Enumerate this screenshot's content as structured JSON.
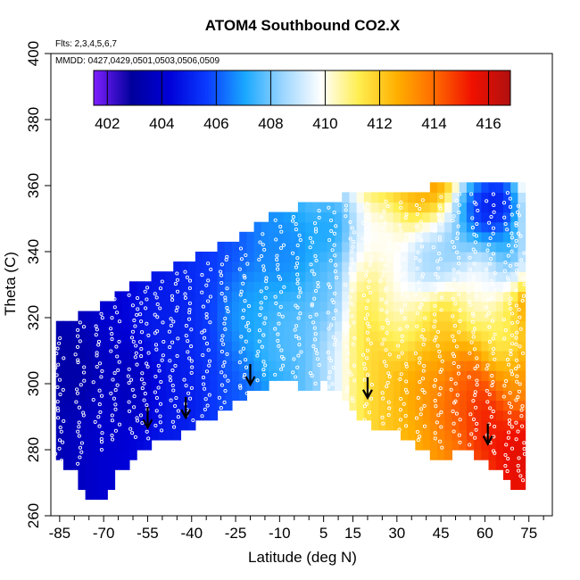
{
  "chart_data": {
    "type": "heatmap",
    "title": "ATOM4 Southbound CO2.X",
    "annotations": {
      "flights": "Flts: 2,3,4,5,6,7",
      "dates": "MMDD: 0427,0429,0501,0503,0506,0509"
    },
    "xlabel": "Latitude (deg N)",
    "ylabel": "Theta (C)",
    "xlim": [
      -88,
      83
    ],
    "ylim": [
      260,
      400
    ],
    "x_ticks": [
      -85,
      -70,
      -55,
      -40,
      -25,
      -10,
      5,
      15,
      30,
      45,
      60,
      75
    ],
    "y_ticks": [
      260,
      280,
      300,
      320,
      340,
      360,
      380,
      400
    ],
    "colorbar": {
      "range": [
        401.5,
        416.8
      ],
      "ticks": [
        402,
        404,
        406,
        408,
        410,
        412,
        414,
        416
      ],
      "colors": [
        "#7f1fff",
        "#00009c",
        "#0000d8",
        "#0a3cff",
        "#1aa8ff",
        "#9dd6ff",
        "#ffffff",
        "#ffee50",
        "#ffb000",
        "#ff6a00",
        "#f01000",
        "#b01010"
      ]
    },
    "columns": [
      {
        "lat": -85,
        "bottom": 278,
        "top": 318,
        "co2": 403.5
      },
      {
        "lat": -80,
        "bottom": 273,
        "top": 320,
        "co2": 403.7
      },
      {
        "lat": -75,
        "bottom": 266,
        "top": 322,
        "co2": 403.9
      },
      {
        "lat": -70,
        "bottom": 265,
        "top": 324,
        "co2": 404.1
      },
      {
        "lat": -65,
        "bottom": 273,
        "top": 328,
        "co2": 404.2
      },
      {
        "lat": -60,
        "bottom": 278,
        "top": 330,
        "co2": 404.4
      },
      {
        "lat": -55,
        "bottom": 281,
        "top": 332,
        "co2": 404.6
      },
      {
        "lat": -50,
        "bottom": 283,
        "top": 334,
        "co2": 404.8
      },
      {
        "lat": -45,
        "bottom": 284,
        "top": 336,
        "co2": 405.0
      },
      {
        "lat": -40,
        "bottom": 287,
        "top": 338,
        "co2": 405.3
      },
      {
        "lat": -35,
        "bottom": 289,
        "top": 340,
        "co2": 405.5
      },
      {
        "lat": -30,
        "bottom": 291,
        "top": 342,
        "co2": 405.8
      },
      {
        "lat": -25,
        "bottom": 294,
        "top": 344,
        "co2": 406.0
      },
      {
        "lat": -20,
        "bottom": 297,
        "top": 346,
        "co2": 406.3
      },
      {
        "lat": -15,
        "bottom": 299,
        "top": 350,
        "co2": 406.7
      },
      {
        "lat": -10,
        "bottom": 301,
        "top": 351,
        "co2": 407.0
      },
      {
        "lat": -5,
        "bottom": 300,
        "top": 353,
        "co2": 407.5
      },
      {
        "lat": 0,
        "bottom": 299,
        "top": 355,
        "co2": 408.0
      },
      {
        "lat": 5,
        "bottom": 300,
        "top": 355,
        "co2": 408.6
      },
      {
        "lat": 10,
        "bottom": 297,
        "top": 356,
        "co2": 409.5
      },
      {
        "lat": 15,
        "bottom": 292,
        "top": 357,
        "co2": 410.8
      },
      {
        "lat": 20,
        "bottom": 288,
        "top": 358,
        "co2": 411.6
      },
      {
        "lat": 25,
        "bottom": 287,
        "top": 358,
        "co2": 412.0
      },
      {
        "lat": 30,
        "bottom": 285,
        "top": 359,
        "co2": 412.3
      },
      {
        "lat": 35,
        "bottom": 283,
        "top": 359,
        "co2": 412.6
      },
      {
        "lat": 40,
        "bottom": 279,
        "top": 359,
        "co2": 412.9
      },
      {
        "lat": 45,
        "bottom": 277,
        "top": 360,
        "co2": 413.2
      },
      {
        "lat": 50,
        "bottom": 280,
        "top": 360,
        "co2": 413.6
      },
      {
        "lat": 55,
        "bottom": 280,
        "top": 361,
        "co2": 414.0
      },
      {
        "lat": 60,
        "bottom": 277,
        "top": 361,
        "co2": 414.4
      },
      {
        "lat": 65,
        "bottom": 273,
        "top": 361,
        "co2": 414.8
      },
      {
        "lat": 70,
        "bottom": 268,
        "top": 362,
        "co2": 415.3
      }
    ],
    "blobs": [
      {
        "lat": -80,
        "theta": 305,
        "co2": 403.0
      },
      {
        "lat": -60,
        "theta": 300,
        "co2": 403.5
      },
      {
        "lat": -50,
        "theta": 318,
        "co2": 405.0
      },
      {
        "lat": -45,
        "theta": 296,
        "co2": 404.8
      },
      {
        "lat": -20,
        "theta": 320,
        "co2": 407.2
      },
      {
        "lat": -10,
        "theta": 315,
        "co2": 407.8
      },
      {
        "lat": -5,
        "theta": 340,
        "co2": 406.5
      },
      {
        "lat": 5,
        "theta": 330,
        "co2": 407.6
      },
      {
        "lat": 10,
        "theta": 345,
        "co2": 406.2
      },
      {
        "lat": 18,
        "theta": 340,
        "co2": 409.8
      },
      {
        "lat": 22,
        "theta": 330,
        "co2": 411.5
      },
      {
        "lat": 25,
        "theta": 342,
        "co2": 409.2
      },
      {
        "lat": 30,
        "theta": 330,
        "co2": 409.0
      },
      {
        "lat": 35,
        "theta": 320,
        "co2": 410.5
      },
      {
        "lat": 40,
        "theta": 336,
        "co2": 407.3
      },
      {
        "lat": 42,
        "theta": 303,
        "co2": 413.0
      },
      {
        "lat": 45,
        "theta": 316,
        "co2": 411.8
      },
      {
        "lat": 50,
        "theta": 340,
        "co2": 406.8
      },
      {
        "lat": 50,
        "theta": 297,
        "co2": 414.5
      },
      {
        "lat": 55,
        "theta": 325,
        "co2": 410.2
      },
      {
        "lat": 58,
        "theta": 352,
        "co2": 403.5
      },
      {
        "lat": 60,
        "theta": 330,
        "co2": 408.5
      },
      {
        "lat": 62,
        "theta": 290,
        "co2": 415.5
      },
      {
        "lat": 65,
        "theta": 355,
        "co2": 402.3
      },
      {
        "lat": 67,
        "theta": 314,
        "co2": 410.0
      },
      {
        "lat": 68,
        "theta": 340,
        "co2": 405.5
      },
      {
        "lat": 70,
        "theta": 300,
        "co2": 412.5
      },
      {
        "lat": 72,
        "theta": 280,
        "co2": 415.8
      }
    ],
    "arrows": [
      {
        "lat": -55,
        "theta": 287
      },
      {
        "lat": -42,
        "theta": 290
      },
      {
        "lat": -20,
        "theta": 300
      },
      {
        "lat": 20,
        "theta": 296
      },
      {
        "lat": 61,
        "theta": 282
      }
    ],
    "flight_tracks": [
      {
        "lat": -85,
        "t0": 265,
        "t1": 315
      },
      {
        "lat": -78,
        "t0": 275,
        "t1": 320
      },
      {
        "lat": -72,
        "t0": 280,
        "t1": 322
      },
      {
        "lat": -66,
        "t0": 282,
        "t1": 326
      },
      {
        "lat": -60,
        "t0": 283,
        "t1": 328
      },
      {
        "lat": -56,
        "t0": 283,
        "t1": 330
      },
      {
        "lat": -51,
        "t0": 285,
        "t1": 332
      },
      {
        "lat": -46,
        "t0": 286,
        "t1": 334
      },
      {
        "lat": -41,
        "t0": 288,
        "t1": 335
      },
      {
        "lat": -35,
        "t0": 290,
        "t1": 337
      },
      {
        "lat": -29,
        "t0": 292,
        "t1": 340
      },
      {
        "lat": -22,
        "t0": 296,
        "t1": 342
      },
      {
        "lat": -16,
        "t0": 300,
        "t1": 346
      },
      {
        "lat": -10,
        "t0": 300,
        "t1": 350
      },
      {
        "lat": -4,
        "t0": 300,
        "t1": 352
      },
      {
        "lat": 2,
        "t0": 300,
        "t1": 353
      },
      {
        "lat": 8,
        "t0": 298,
        "t1": 354
      },
      {
        "lat": 14,
        "t0": 294,
        "t1": 355
      },
      {
        "lat": 20,
        "t0": 289,
        "t1": 356
      },
      {
        "lat": 26,
        "t0": 287,
        "t1": 356
      },
      {
        "lat": 32,
        "t0": 285,
        "t1": 356
      },
      {
        "lat": 38,
        "t0": 282,
        "t1": 357
      },
      {
        "lat": 44,
        "t0": 280,
        "t1": 357
      },
      {
        "lat": 50,
        "t0": 282,
        "t1": 358
      },
      {
        "lat": 56,
        "t0": 281,
        "t1": 358
      },
      {
        "lat": 62,
        "t0": 278,
        "t1": 358
      },
      {
        "lat": 68,
        "t0": 273,
        "t1": 359
      },
      {
        "lat": 72,
        "t0": 270,
        "t1": 355
      }
    ]
  }
}
